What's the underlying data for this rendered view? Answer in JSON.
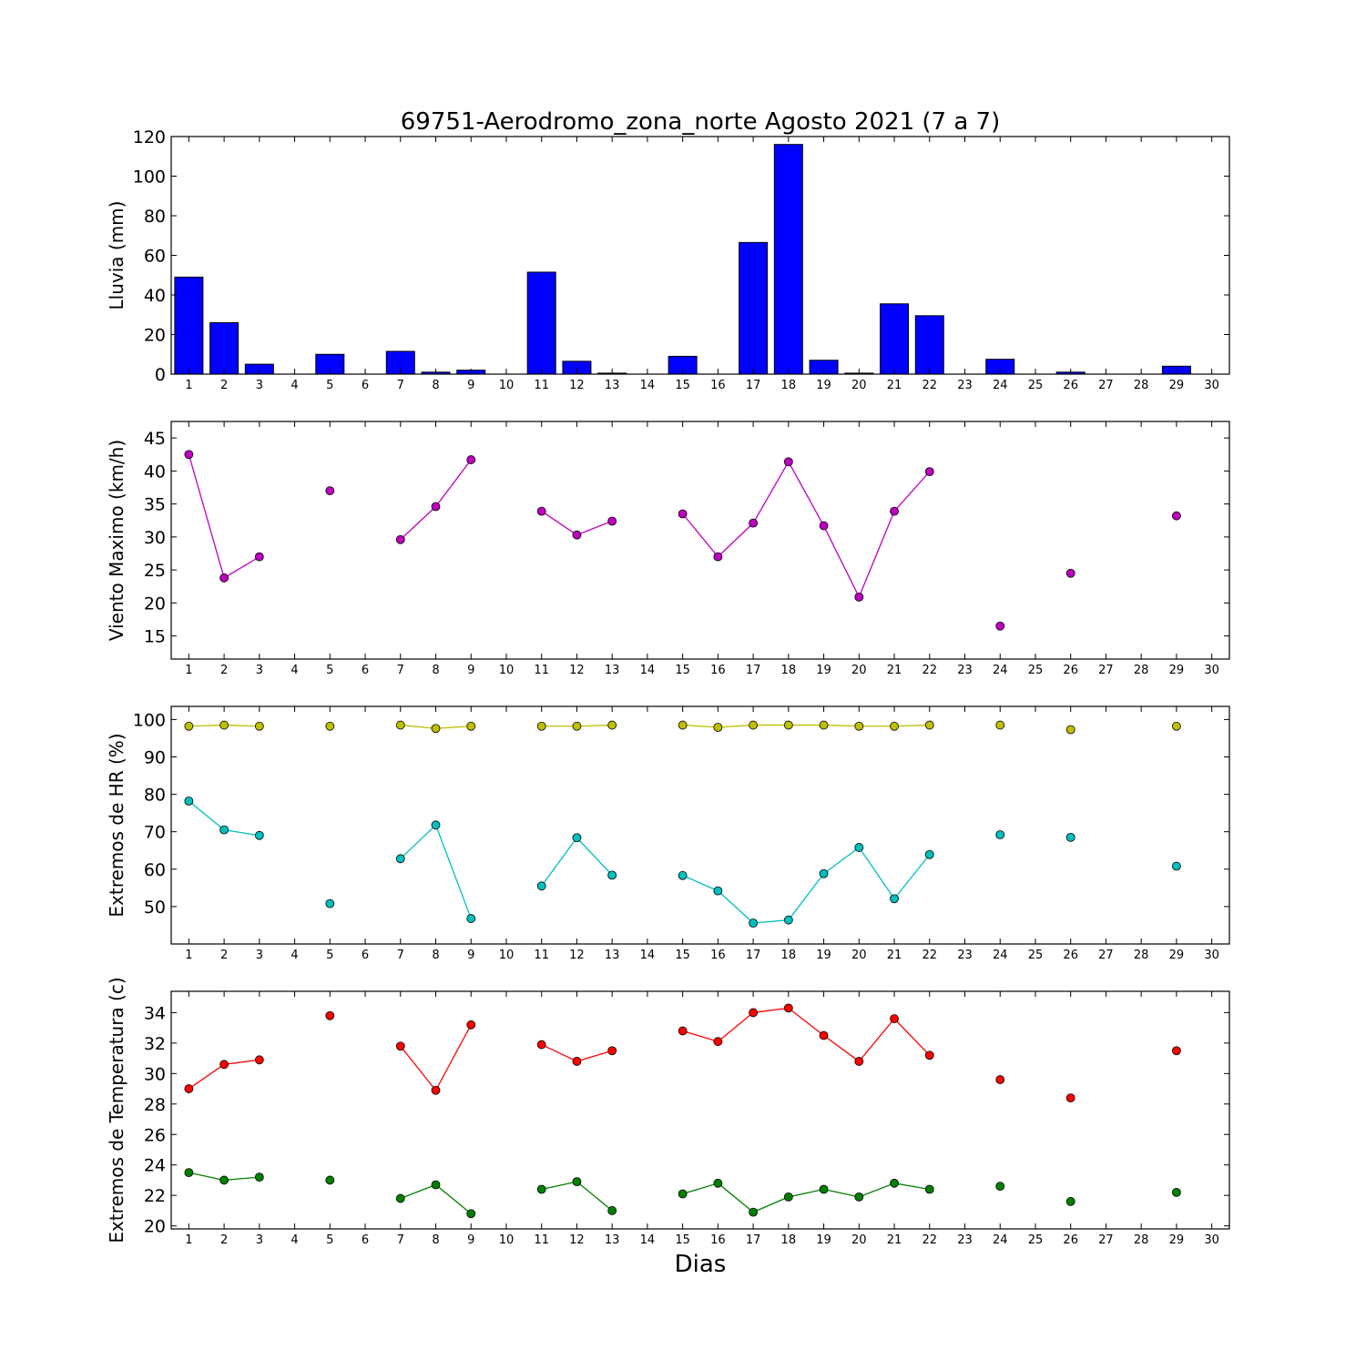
{
  "chart_data": {
    "title": "69751-Aerodromo_zona_norte Agosto 2021  (7 a 7)",
    "xlabel": "Dias",
    "x_ticks": [
      1,
      2,
      3,
      4,
      5,
      6,
      7,
      8,
      9,
      10,
      11,
      12,
      13,
      14,
      15,
      16,
      17,
      18,
      19,
      20,
      21,
      22,
      23,
      24,
      25,
      26,
      27,
      28,
      29,
      30
    ],
    "xlim": [
      0.5,
      30.5
    ],
    "panels": [
      {
        "type": "bar",
        "ylabel": "Lluvia (mm)",
        "ylim": [
          0,
          120
        ],
        "yticks": [
          0,
          20,
          40,
          60,
          80,
          100,
          120
        ],
        "grid": false,
        "series": [
          {
            "color": "#0000ff",
            "points": [
              [
                1,
                49
              ],
              [
                2,
                26
              ],
              [
                3,
                5
              ],
              [
                5,
                10
              ],
              [
                7,
                11.5
              ],
              [
                8,
                1
              ],
              [
                9,
                2
              ],
              [
                11,
                51.5
              ],
              [
                12,
                6.5
              ],
              [
                13,
                0.5
              ],
              [
                15,
                9
              ],
              [
                17,
                66.5
              ],
              [
                18,
                116
              ],
              [
                19,
                7
              ],
              [
                20,
                0.5
              ],
              [
                21,
                35.5
              ],
              [
                22,
                29.5
              ],
              [
                24,
                7.5
              ],
              [
                26,
                1
              ],
              [
                29,
                4
              ]
            ]
          }
        ]
      },
      {
        "type": "line",
        "ylabel": "Viento Maximo (km/h)",
        "ylim": [
          11.5,
          47.5
        ],
        "yticks": [
          15,
          20,
          25,
          30,
          35,
          40,
          45
        ],
        "grid": false,
        "series": [
          {
            "color": "#bf00bf",
            "points": [
              [
                1,
                42.5
              ],
              [
                2,
                23.8
              ],
              [
                3,
                27
              ],
              [
                5,
                37
              ],
              [
                7,
                29.6
              ],
              [
                8,
                34.6
              ],
              [
                9,
                41.7
              ],
              [
                11,
                33.9
              ],
              [
                12,
                30.3
              ],
              [
                13,
                32.4
              ],
              [
                15,
                33.5
              ],
              [
                16,
                27
              ],
              [
                17,
                32.1
              ],
              [
                18,
                41.4
              ],
              [
                19,
                31.7
              ],
              [
                20,
                20.9
              ],
              [
                21,
                33.9
              ],
              [
                22,
                39.9
              ],
              [
                24,
                16.5
              ],
              [
                26,
                24.5
              ],
              [
                29,
                33.2
              ]
            ]
          }
        ]
      },
      {
        "type": "line",
        "ylabel": "Extremos de HR (%)",
        "ylim": [
          40,
          103.5
        ],
        "yticks": [
          50,
          60,
          70,
          80,
          90,
          100
        ],
        "grid": false,
        "series": [
          {
            "color": "#bfbf00",
            "points": [
              [
                1,
                98.2
              ],
              [
                2,
                98.5
              ],
              [
                3,
                98.2
              ],
              [
                5,
                98.2
              ],
              [
                7,
                98.5
              ],
              [
                8,
                97.6
              ],
              [
                9,
                98.2
              ],
              [
                11,
                98.2
              ],
              [
                12,
                98.2
              ],
              [
                13,
                98.5
              ],
              [
                15,
                98.5
              ],
              [
                16,
                97.9
              ],
              [
                17,
                98.5
              ],
              [
                18,
                98.5
              ],
              [
                19,
                98.5
              ],
              [
                20,
                98.2
              ],
              [
                21,
                98.2
              ],
              [
                22,
                98.5
              ],
              [
                24,
                98.5
              ],
              [
                26,
                97.3
              ],
              [
                29,
                98.2
              ]
            ]
          },
          {
            "color": "#00bfbf",
            "points": [
              [
                1,
                78.2
              ],
              [
                2,
                70.5
              ],
              [
                3,
                69
              ],
              [
                5,
                50.8
              ],
              [
                7,
                62.8
              ],
              [
                8,
                71.8
              ],
              [
                9,
                46.8
              ],
              [
                11,
                55.5
              ],
              [
                12,
                68.4
              ],
              [
                13,
                58.4
              ],
              [
                15,
                58.3
              ],
              [
                16,
                54.2
              ],
              [
                17,
                45.6
              ],
              [
                18,
                46.4
              ],
              [
                19,
                58.8
              ],
              [
                20,
                65.8
              ],
              [
                21,
                52.1
              ],
              [
                22,
                63.9
              ],
              [
                24,
                69.2
              ],
              [
                26,
                68.5
              ],
              [
                29,
                60.8
              ]
            ]
          }
        ]
      },
      {
        "type": "line",
        "ylabel": "Extremos de Temperatura (c)",
        "ylim": [
          19.8,
          35.4
        ],
        "yticks": [
          20,
          22,
          24,
          26,
          28,
          30,
          32,
          34
        ],
        "grid": false,
        "series": [
          {
            "color": "#ff0000",
            "points": [
              [
                1,
                29
              ],
              [
                2,
                30.6
              ],
              [
                3,
                30.9
              ],
              [
                5,
                33.8
              ],
              [
                7,
                31.8
              ],
              [
                8,
                28.9
              ],
              [
                9,
                33.2
              ],
              [
                11,
                31.9
              ],
              [
                12,
                30.8
              ],
              [
                13,
                31.5
              ],
              [
                15,
                32.8
              ],
              [
                16,
                32.1
              ],
              [
                17,
                34
              ],
              [
                18,
                34.3
              ],
              [
                19,
                32.5
              ],
              [
                20,
                30.8
              ],
              [
                21,
                33.6
              ],
              [
                22,
                31.2
              ],
              [
                24,
                29.6
              ],
              [
                26,
                28.4
              ],
              [
                29,
                31.5
              ]
            ]
          },
          {
            "color": "#008000",
            "points": [
              [
                1,
                23.5
              ],
              [
                2,
                23
              ],
              [
                3,
                23.2
              ],
              [
                5,
                23
              ],
              [
                7,
                21.8
              ],
              [
                8,
                22.7
              ],
              [
                9,
                20.8
              ],
              [
                11,
                22.4
              ],
              [
                12,
                22.9
              ],
              [
                13,
                21
              ],
              [
                15,
                22.1
              ],
              [
                16,
                22.8
              ],
              [
                17,
                20.9
              ],
              [
                18,
                21.9
              ],
              [
                19,
                22.4
              ],
              [
                20,
                21.9
              ],
              [
                21,
                22.8
              ],
              [
                22,
                22.4
              ],
              [
                24,
                22.6
              ],
              [
                26,
                21.6
              ],
              [
                29,
                22.2
              ]
            ]
          }
        ]
      }
    ]
  }
}
